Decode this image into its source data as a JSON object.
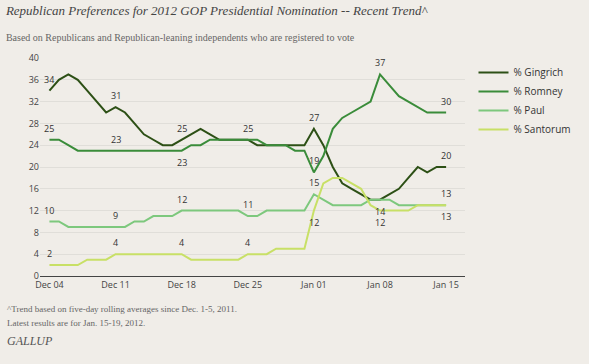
{
  "chart_data": {
    "type": "line",
    "title": "Republican Preferences for 2012 GOP Presidential Nomination -- Recent Trend^",
    "subtitle": "Based on Republicans and Republican-leaning independents who are registered to vote",
    "notes": [
      "^Trend based on five-day rolling averages since Dec. 1-5, 2011.",
      "Latest results are for Jan. 15-19, 2012.",
      "GALLUP"
    ],
    "background_color": "#f0ede8",
    "x": [
      0,
      1,
      2,
      3,
      4,
      5,
      6,
      7,
      8,
      9,
      10,
      11,
      12,
      13,
      14,
      15,
      16,
      17,
      18,
      19,
      20,
      21,
      22,
      23,
      24,
      25,
      26,
      27,
      28,
      29,
      30,
      31,
      32,
      33,
      34,
      35,
      36,
      37,
      38,
      39,
      40,
      41,
      42
    ],
    "xlim": [
      -1,
      44
    ],
    "xticks": [
      {
        "value": 0,
        "label": "Dec 04"
      },
      {
        "value": 7,
        "label": "Dec 11"
      },
      {
        "value": 14,
        "label": "Dec 18"
      },
      {
        "value": 21,
        "label": "Dec 25"
      },
      {
        "value": 28,
        "label": "Jan 01"
      },
      {
        "value": 35,
        "label": "Jan 08"
      },
      {
        "value": 42,
        "label": "Jan 15"
      }
    ],
    "ylim": [
      0,
      40
    ],
    "yticks": [
      0,
      4,
      8,
      12,
      16,
      20,
      24,
      28,
      32,
      36,
      40
    ],
    "grid": "y",
    "legend": "right",
    "series": [
      {
        "name": "% Gingrich",
        "color": "#2d5016",
        "values": [
          34,
          36,
          37,
          36,
          34,
          32,
          30,
          31,
          30,
          28,
          26,
          25,
          24,
          24,
          25,
          26,
          27,
          26,
          25,
          25,
          25,
          25,
          24,
          24,
          24,
          24,
          24,
          24,
          27,
          24,
          20,
          17,
          16,
          15,
          14,
          14,
          15,
          16,
          18,
          20,
          19,
          20,
          20
        ]
      },
      {
        "name": "% Romney",
        "color": "#3a8c3a",
        "values": [
          25,
          25,
          24,
          23,
          23,
          23,
          23,
          23,
          23,
          23,
          23,
          23,
          23,
          23,
          23,
          24,
          24,
          25,
          25,
          25,
          25,
          25,
          25,
          24,
          24,
          24,
          23,
          23,
          19,
          22,
          27,
          29,
          30,
          31,
          32,
          37,
          35,
          33,
          32,
          31,
          30,
          30,
          30
        ]
      },
      {
        "name": "% Paul",
        "color": "#7dc87d",
        "values": [
          10,
          10,
          9,
          9,
          9,
          9,
          9,
          9,
          9,
          10,
          10,
          11,
          11,
          11,
          12,
          12,
          12,
          12,
          12,
          12,
          12,
          11,
          11,
          12,
          12,
          12,
          12,
          12,
          15,
          14,
          13,
          13,
          13,
          13,
          14,
          14,
          14,
          13,
          13,
          13,
          13,
          13,
          13
        ]
      },
      {
        "name": "% Santorum",
        "color": "#c8e066",
        "values": [
          2,
          2,
          2,
          2,
          3,
          3,
          3,
          4,
          4,
          4,
          4,
          4,
          4,
          4,
          4,
          3,
          3,
          3,
          3,
          3,
          3,
          4,
          4,
          4,
          5,
          5,
          5,
          5,
          12,
          17,
          18,
          18,
          17,
          16,
          13,
          12,
          12,
          12,
          12,
          13,
          13,
          13,
          13
        ]
      }
    ],
    "annotations": [
      {
        "series": "% Gingrich",
        "x": 0,
        "y": 34,
        "text": "34"
      },
      {
        "series": "% Gingrich",
        "x": 7,
        "y": 31,
        "text": "31"
      },
      {
        "series": "% Gingrich",
        "x": 14,
        "y": 25,
        "text": "25"
      },
      {
        "series": "% Gingrich",
        "x": 21,
        "y": 25,
        "text": "25"
      },
      {
        "series": "% Gingrich",
        "x": 28,
        "y": 27,
        "text": "27"
      },
      {
        "series": "% Gingrich",
        "x": 42,
        "y": 20,
        "text": "20"
      },
      {
        "series": "% Romney",
        "x": 0,
        "y": 25,
        "text": "25"
      },
      {
        "series": "% Romney",
        "x": 7,
        "y": 23,
        "text": "23"
      },
      {
        "series": "% Romney",
        "x": 14,
        "y": 23,
        "text": "23"
      },
      {
        "series": "% Romney",
        "x": 28,
        "y": 19,
        "text": "19"
      },
      {
        "series": "% Romney",
        "x": 35,
        "y": 37,
        "text": "37"
      },
      {
        "series": "% Romney",
        "x": 42,
        "y": 30,
        "text": "30"
      },
      {
        "series": "% Paul",
        "x": 0,
        "y": 10,
        "text": "10"
      },
      {
        "series": "% Paul",
        "x": 7,
        "y": 9,
        "text": "9"
      },
      {
        "series": "% Paul",
        "x": 14,
        "y": 12,
        "text": "12"
      },
      {
        "series": "% Paul",
        "x": 21,
        "y": 11,
        "text": "11"
      },
      {
        "series": "% Paul",
        "x": 28,
        "y": 15,
        "text": "15"
      },
      {
        "series": "% Paul",
        "x": 35,
        "y": 14,
        "text": "14"
      },
      {
        "series": "% Paul",
        "x": 42,
        "y": 13,
        "text": "13"
      },
      {
        "series": "% Santorum",
        "x": 0,
        "y": 2,
        "text": "2"
      },
      {
        "series": "% Santorum",
        "x": 7,
        "y": 4,
        "text": "4"
      },
      {
        "series": "% Santorum",
        "x": 14,
        "y": 4,
        "text": "4"
      },
      {
        "series": "% Santorum",
        "x": 21,
        "y": 4,
        "text": "4"
      },
      {
        "series": "% Santorum",
        "x": 28,
        "y": 12,
        "text": "12"
      },
      {
        "series": "% Santorum",
        "x": 35,
        "y": 12,
        "text": "12"
      },
      {
        "series": "% Santorum",
        "x": 42,
        "y": 13,
        "text": "13"
      }
    ]
  }
}
